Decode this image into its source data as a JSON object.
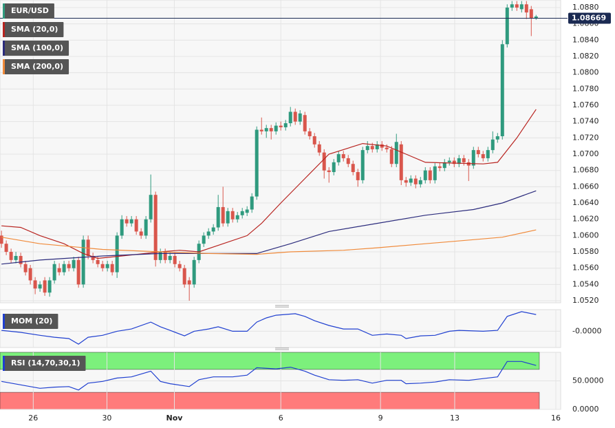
{
  "chart_data": [
    {
      "type": "candlestick",
      "name": "EUR/USD",
      "up_color": "#2f9a7e",
      "down_color": "#d9564c",
      "grid": true,
      "xlim": [
        -0.3,
        116.1
      ],
      "xticks": [
        {
          "value": 6.6,
          "label": "26"
        },
        {
          "value": 21.9,
          "label": "30"
        },
        {
          "value": 35.9,
          "label": "Nov"
        },
        {
          "value": 58,
          "label": "6"
        },
        {
          "value": 78.7,
          "label": "9"
        },
        {
          "value": 94.1,
          "label": "13"
        },
        {
          "value": 115.1,
          "label": "16"
        }
      ],
      "ylim": [
        1.05175,
        1.08893
      ],
      "yticks": [
        {
          "value": 1.052,
          "label": "1.0520"
        },
        {
          "value": 1.054,
          "label": "1.0540"
        },
        {
          "value": 1.056,
          "label": "1.0560"
        },
        {
          "value": 1.058,
          "label": "1.0580"
        },
        {
          "value": 1.06,
          "label": "1.0600"
        },
        {
          "value": 1.062,
          "label": "1.0620"
        },
        {
          "value": 1.064,
          "label": "1.0640"
        },
        {
          "value": 1.066,
          "label": "1.0660"
        },
        {
          "value": 1.068,
          "label": "1.0680"
        },
        {
          "value": 1.07,
          "label": "1.0700"
        },
        {
          "value": 1.072,
          "label": "1.0720"
        },
        {
          "value": 1.074,
          "label": "1.0740"
        },
        {
          "value": 1.076,
          "label": "1.0760"
        },
        {
          "value": 1.078,
          "label": "1.0780"
        },
        {
          "value": 1.08,
          "label": "1.0800"
        },
        {
          "value": 1.082,
          "label": "1.0820"
        },
        {
          "value": 1.084,
          "label": "1.0840"
        },
        {
          "value": 1.086,
          "label": "1.0860"
        },
        {
          "value": 1.088,
          "label": "1.0880"
        }
      ],
      "last_price": 1.08669,
      "candles": [
        [
          1.06,
          1.0606,
          1.0585,
          1.059
        ],
        [
          1.059,
          1.0594,
          1.0576,
          1.058
        ],
        [
          1.058,
          1.0584,
          1.0566,
          1.057
        ],
        [
          1.057,
          1.058,
          1.0566,
          1.0575
        ],
        [
          1.0575,
          1.0579,
          1.0561,
          1.0565
        ],
        [
          1.0565,
          1.0569,
          1.0551,
          1.0555
        ],
        [
          1.056,
          1.0564,
          1.054,
          1.0545
        ],
        [
          1.0545,
          1.0549,
          1.0528,
          1.0535
        ],
        [
          1.0535,
          1.0544,
          1.0531,
          1.054
        ],
        [
          1.0545,
          1.0549,
          1.0526,
          1.053
        ],
        [
          1.053,
          1.0549,
          1.0525,
          1.0545
        ],
        [
          1.0545,
          1.0569,
          1.0541,
          1.0565
        ],
        [
          1.056,
          1.0566,
          1.0551,
          1.0555
        ],
        [
          1.0555,
          1.0569,
          1.0551,
          1.0565
        ],
        [
          1.0565,
          1.0569,
          1.0556,
          1.056
        ],
        [
          1.056,
          1.0574,
          1.0556,
          1.057
        ],
        [
          1.057,
          1.0574,
          1.0536,
          1.054
        ],
        [
          1.054,
          1.06,
          1.0536,
          1.0595
        ],
        [
          1.0595,
          1.06,
          1.0571,
          1.0575
        ],
        [
          1.0575,
          1.0579,
          1.0566,
          1.057
        ],
        [
          1.057,
          1.0574,
          1.0561,
          1.0565
        ],
        [
          1.0565,
          1.0569,
          1.0556,
          1.056
        ],
        [
          1.056,
          1.0569,
          1.0556,
          1.0565
        ],
        [
          1.0565,
          1.0569,
          1.0551,
          1.0555
        ],
        [
          1.0555,
          1.0604,
          1.0548,
          1.06
        ],
        [
          1.06,
          1.0625,
          1.0596,
          1.062
        ],
        [
          1.062,
          1.0624,
          1.0611,
          1.0615
        ],
        [
          1.0615,
          1.0624,
          1.0611,
          1.062
        ],
        [
          1.062,
          1.0624,
          1.0601,
          1.0605
        ],
        [
          1.0605,
          1.0609,
          1.0596,
          1.06
        ],
        [
          1.06,
          1.0624,
          1.0596,
          1.062
        ],
        [
          1.062,
          1.0675,
          1.0616,
          1.065
        ],
        [
          1.065,
          1.0654,
          1.0562,
          1.057
        ],
        [
          1.057,
          1.0584,
          1.0566,
          1.058
        ],
        [
          1.058,
          1.0584,
          1.0566,
          1.057
        ],
        [
          1.057,
          1.0579,
          1.0566,
          1.0575
        ],
        [
          1.0575,
          1.0579,
          1.0561,
          1.0565
        ],
        [
          1.0565,
          1.0569,
          1.0556,
          1.056
        ],
        [
          1.056,
          1.0564,
          1.0536,
          1.054
        ],
        [
          1.0545,
          1.0549,
          1.052,
          1.054
        ],
        [
          1.054,
          1.0574,
          1.0536,
          1.057
        ],
        [
          1.057,
          1.0594,
          1.0566,
          1.059
        ],
        [
          1.059,
          1.0604,
          1.0586,
          1.06
        ],
        [
          1.06,
          1.0609,
          1.0596,
          1.0605
        ],
        [
          1.0605,
          1.0614,
          1.0601,
          1.061
        ],
        [
          1.061,
          1.065,
          1.0606,
          1.0635
        ],
        [
          1.0635,
          1.066,
          1.0611,
          1.0615
        ],
        [
          1.0615,
          1.0634,
          1.0611,
          1.063
        ],
        [
          1.063,
          1.0634,
          1.0616,
          1.062
        ],
        [
          1.062,
          1.0629,
          1.0616,
          1.0625
        ],
        [
          1.0625,
          1.0634,
          1.0621,
          1.063
        ],
        [
          1.0628,
          1.0636,
          1.0624,
          1.0632
        ],
        [
          1.0632,
          1.0652,
          1.0628,
          1.0648
        ],
        [
          1.0648,
          1.0734,
          1.0644,
          1.073
        ],
        [
          1.073,
          1.0745,
          1.0724,
          1.0728
        ],
        [
          1.0728,
          1.0736,
          1.072,
          1.0732
        ],
        [
          1.0732,
          1.0736,
          1.0718,
          1.0728
        ],
        [
          1.0728,
          1.0739,
          1.0724,
          1.0735
        ],
        [
          1.0735,
          1.074,
          1.0729,
          1.0733
        ],
        [
          1.0733,
          1.0742,
          1.0729,
          1.0738
        ],
        [
          1.0738,
          1.0758,
          1.0734,
          1.0752
        ],
        [
          1.0752,
          1.0756,
          1.0736,
          1.074
        ],
        [
          1.074,
          1.0754,
          1.0736,
          1.075
        ],
        [
          1.0748,
          1.0752,
          1.0724,
          1.0728
        ],
        [
          1.0728,
          1.0732,
          1.0718,
          1.0722
        ],
        [
          1.0722,
          1.0726,
          1.0708,
          1.0712
        ],
        [
          1.0712,
          1.0716,
          1.0698,
          1.0702
        ],
        [
          1.0702,
          1.0706,
          1.067,
          1.068
        ],
        [
          1.068,
          1.0684,
          1.0665,
          1.0678
        ],
        [
          1.0678,
          1.0694,
          1.0674,
          1.069
        ],
        [
          1.069,
          1.0704,
          1.0686,
          1.07
        ],
        [
          1.07,
          1.0704,
          1.0691,
          1.0695
        ],
        [
          1.0695,
          1.0699,
          1.0684,
          1.0688
        ],
        [
          1.0688,
          1.0692,
          1.0674,
          1.0678
        ],
        [
          1.0678,
          1.0682,
          1.066,
          1.0668
        ],
        [
          1.0668,
          1.0709,
          1.0664,
          1.0705
        ],
        [
          1.0705,
          1.0716,
          1.0701,
          1.071
        ],
        [
          1.071,
          1.0714,
          1.0702,
          1.0706
        ],
        [
          1.0706,
          1.0716,
          1.0702,
          1.0712
        ],
        [
          1.0712,
          1.0716,
          1.0704,
          1.0708
        ],
        [
          1.0708,
          1.0712,
          1.0702,
          1.0706
        ],
        [
          1.0706,
          1.071,
          1.0684,
          1.0688
        ],
        [
          1.0688,
          1.0725,
          1.0684,
          1.0715
        ],
        [
          1.0712,
          1.0716,
          1.0662,
          1.0668
        ],
        [
          1.0668,
          1.0672,
          1.066,
          1.0665
        ],
        [
          1.0665,
          1.0674,
          1.0661,
          1.067
        ],
        [
          1.067,
          1.0674,
          1.0658,
          1.0663
        ],
        [
          1.0663,
          1.0672,
          1.0659,
          1.0668
        ],
        [
          1.0668,
          1.0684,
          1.0664,
          1.068
        ],
        [
          1.068,
          1.0684,
          1.0664,
          1.0668
        ],
        [
          1.0668,
          1.0689,
          1.0664,
          1.0685
        ],
        [
          1.0685,
          1.0689,
          1.0679,
          1.0683
        ],
        [
          1.0683,
          1.0694,
          1.0679,
          1.069
        ],
        [
          1.069,
          1.0696,
          1.0686,
          1.0692
        ],
        [
          1.0692,
          1.0696,
          1.0684,
          1.0688
        ],
        [
          1.0688,
          1.0699,
          1.0684,
          1.0695
        ],
        [
          1.0695,
          1.0699,
          1.0686,
          1.069
        ],
        [
          1.069,
          1.0694,
          1.0667,
          1.0686
        ],
        [
          1.0686,
          1.0709,
          1.0682,
          1.0705
        ],
        [
          1.0705,
          1.0709,
          1.0696,
          1.07
        ],
        [
          1.07,
          1.0704,
          1.0691,
          1.0695
        ],
        [
          1.0695,
          1.0709,
          1.0691,
          1.0705
        ],
        [
          1.0705,
          1.0728,
          1.0701,
          1.0718
        ],
        [
          1.0718,
          1.0726,
          1.0714,
          1.0722
        ],
        [
          1.0722,
          1.084,
          1.0718,
          1.0835
        ],
        [
          1.0835,
          1.0884,
          1.0831,
          1.088
        ],
        [
          1.088,
          1.0888,
          1.0876,
          1.0884
        ],
        [
          1.0884,
          1.0888,
          1.0876,
          1.088
        ],
        [
          1.0878,
          1.0888,
          1.0874,
          1.0884
        ],
        [
          1.0884,
          1.0888,
          1.0866,
          1.0874
        ],
        [
          1.0878,
          1.0882,
          1.0845,
          1.0867
        ],
        [
          1.0867,
          1.0871,
          1.0865,
          1.0869
        ]
      ],
      "series": [
        {
          "name": "SMA (20,0)",
          "color": "#b8231f",
          "x": [
            0,
            4,
            8,
            13,
            17,
            20,
            25,
            33,
            37,
            41,
            45,
            51,
            54,
            58,
            63,
            68,
            75,
            80,
            84,
            88,
            100,
            103,
            107,
            111
          ],
          "values": [
            1.0612,
            1.061,
            1.06,
            1.059,
            1.0578,
            1.0572,
            1.0575,
            1.058,
            1.0582,
            1.058,
            1.0588,
            1.06,
            1.0615,
            1.064,
            1.067,
            1.07,
            1.0713,
            1.071,
            1.07,
            1.069,
            1.0688,
            1.069,
            1.072,
            1.0755
          ]
        },
        {
          "name": "SMA (100,0)",
          "color": "#2b2b7c",
          "x": [
            0,
            8,
            21,
            33,
            43,
            53,
            60,
            68,
            78,
            88,
            98,
            104,
            111
          ],
          "values": [
            1.0565,
            1.057,
            1.0575,
            1.0578,
            1.0578,
            1.0578,
            1.059,
            1.0605,
            1.0615,
            1.0625,
            1.0632,
            1.064,
            1.0655
          ]
        },
        {
          "name": "SMA (200,0)",
          "color": "#f08a3a",
          "x": [
            0,
            8,
            21,
            33,
            43,
            53,
            60,
            71,
            78,
            88,
            98,
            104,
            111
          ],
          "values": [
            1.0598,
            1.059,
            1.0583,
            1.058,
            1.0578,
            1.0577,
            1.058,
            1.0582,
            1.0585,
            1.059,
            1.0595,
            1.0598,
            1.0607
          ]
        }
      ]
    },
    {
      "type": "line",
      "grid": true,
      "xlim": [
        -0.3,
        116.1
      ],
      "ylim": [
        -0.012,
        0.016
      ],
      "yticks": [
        {
          "value": 0,
          "label": "-0.0000"
        }
      ],
      "series": [
        {
          "name": "MOM (20)",
          "color": "#1f3fd0",
          "x": [
            0,
            4,
            8,
            11,
            14,
            16,
            18,
            21,
            24,
            27,
            31,
            33,
            35,
            38,
            40,
            43,
            45,
            48,
            51,
            53,
            55,
            57,
            61,
            63,
            65,
            68,
            71,
            74,
            77,
            80,
            83,
            84,
            87,
            90,
            93,
            95,
            100,
            103,
            105,
            108,
            111
          ],
          "values": [
            0.0007,
            -0.0008,
            -0.003,
            -0.0044,
            -0.0054,
            -0.0095,
            -0.0044,
            -0.003,
            0,
            0.0017,
            0.0068,
            0.0033,
            0.0007,
            -0.0034,
            0,
            0.0017,
            0.0033,
            0,
            0,
            0.0068,
            0.0099,
            0.0119,
            0.013,
            0.011,
            0.0078,
            0.0043,
            0.0017,
            0.0017,
            -0.003,
            -0.002,
            -0.003,
            -0.0054,
            -0.0034,
            -0.003,
            0,
            0.0007,
            0,
            0.0007,
            0.011,
            0.0145,
            0.0124
          ]
        }
      ]
    },
    {
      "type": "line",
      "grid": true,
      "xlim": [
        -0.3,
        116.1
      ],
      "ylim": [
        0,
        100
      ],
      "yticks": [
        {
          "value": 50,
          "label": "50.0000"
        },
        {
          "value": 0,
          "label": "0.0000"
        }
      ],
      "bands": [
        {
          "range": [
            70,
            100
          ],
          "color": "#7cf07c"
        },
        {
          "range": [
            0,
            30
          ],
          "color": "#ff7b7b"
        }
      ],
      "series": [
        {
          "name": "RSI (14,70,30,1)",
          "color": "#1f3fd0",
          "x": [
            0,
            4,
            8,
            11,
            14,
            16,
            18,
            21,
            24,
            27,
            31,
            33,
            35,
            39,
            41,
            44,
            48,
            51,
            53,
            57,
            60,
            63,
            65,
            68,
            71,
            74,
            77,
            80,
            83,
            84,
            87,
            90,
            93,
            97,
            100,
            103,
            105,
            108,
            111
          ],
          "values": [
            49,
            43,
            37,
            39,
            40,
            34,
            46,
            49,
            55,
            57,
            67,
            49,
            45,
            40,
            52,
            57,
            57,
            60,
            73,
            71,
            74,
            67,
            60,
            52,
            51,
            52,
            46,
            51,
            51,
            45,
            46,
            48,
            52,
            51,
            54,
            57,
            84,
            84,
            77
          ]
        }
      ]
    }
  ]
}
